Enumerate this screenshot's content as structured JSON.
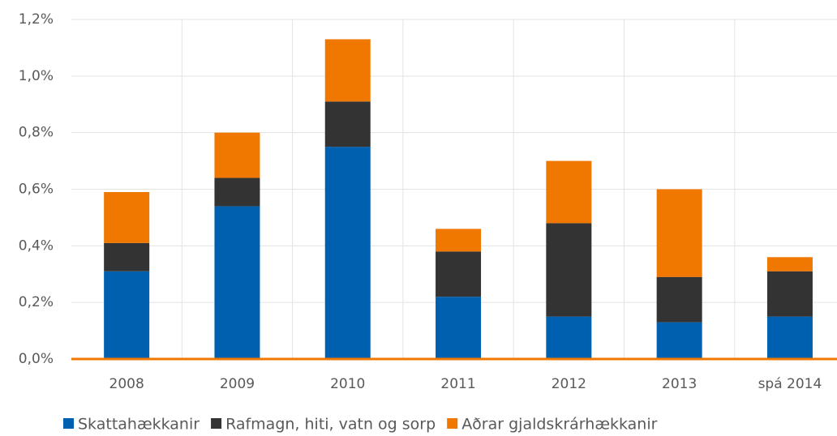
{
  "chart_data": {
    "type": "stacked_bar",
    "categories": [
      "2008",
      "2009",
      "2010",
      "2011",
      "2012",
      "2013",
      "spá 2014"
    ],
    "series": [
      {
        "name": "Skattahækkanir",
        "color": "#0060b0",
        "values": [
          0.31,
          0.54,
          0.75,
          0.22,
          0.15,
          0.13,
          0.15
        ]
      },
      {
        "name": "Rafmagn, hiti, vatn og sorp",
        "color": "#333333",
        "values": [
          0.1,
          0.1,
          0.16,
          0.16,
          0.33,
          0.16,
          0.16
        ]
      },
      {
        "name": "Aðrar gjaldskrárhækkanir",
        "color": "#f07800",
        "values": [
          0.18,
          0.16,
          0.22,
          0.08,
          0.22,
          0.31,
          0.05
        ]
      }
    ],
    "ylim": [
      0,
      1.2
    ],
    "yticks": [
      {
        "value": 0,
        "label": "0,0%"
      },
      {
        "value": 0.2,
        "label": "0,2%"
      },
      {
        "value": 0.4,
        "label": "0,4%"
      },
      {
        "value": 0.6,
        "label": "0,6%"
      },
      {
        "value": 0.8,
        "label": "0,8%"
      },
      {
        "value": 1.0,
        "label": "1,0%"
      },
      {
        "value": 1.2,
        "label": "1,2%"
      }
    ],
    "grid": true,
    "legend": "bottom"
  }
}
